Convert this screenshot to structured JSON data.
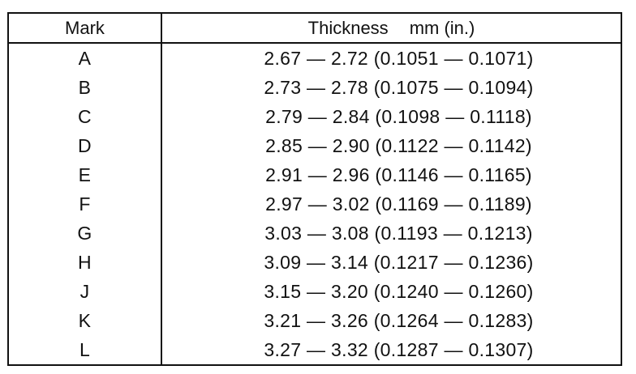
{
  "table": {
    "headers": {
      "mark": "Mark",
      "thickness": "Thickness",
      "unit": "mm (in.)"
    },
    "rows": [
      {
        "mark": "A",
        "thickness": "2.67 — 2.72 (0.1051 — 0.1071)"
      },
      {
        "mark": "B",
        "thickness": "2.73 — 2.78 (0.1075 — 0.1094)"
      },
      {
        "mark": "C",
        "thickness": "2.79 — 2.84 (0.1098 — 0.1118)"
      },
      {
        "mark": "D",
        "thickness": "2.85 — 2.90 (0.1122 — 0.1142)"
      },
      {
        "mark": "E",
        "thickness": "2.91 — 2.96 (0.1146 — 0.1165)"
      },
      {
        "mark": "F",
        "thickness": "2.97 — 3.02 (0.1169 — 0.1189)"
      },
      {
        "mark": "G",
        "thickness": "3.03 — 3.08 (0.1193 — 0.1213)"
      },
      {
        "mark": "H",
        "thickness": "3.09 — 3.14 (0.1217 — 0.1236)"
      },
      {
        "mark": "J",
        "thickness": "3.15 — 3.20 (0.1240 — 0.1260)"
      },
      {
        "mark": "K",
        "thickness": "3.21 — 3.26 (0.1264 — 0.1283)"
      },
      {
        "mark": "L",
        "thickness": "3.27 — 3.32 (0.1287 — 0.1307)"
      }
    ]
  }
}
